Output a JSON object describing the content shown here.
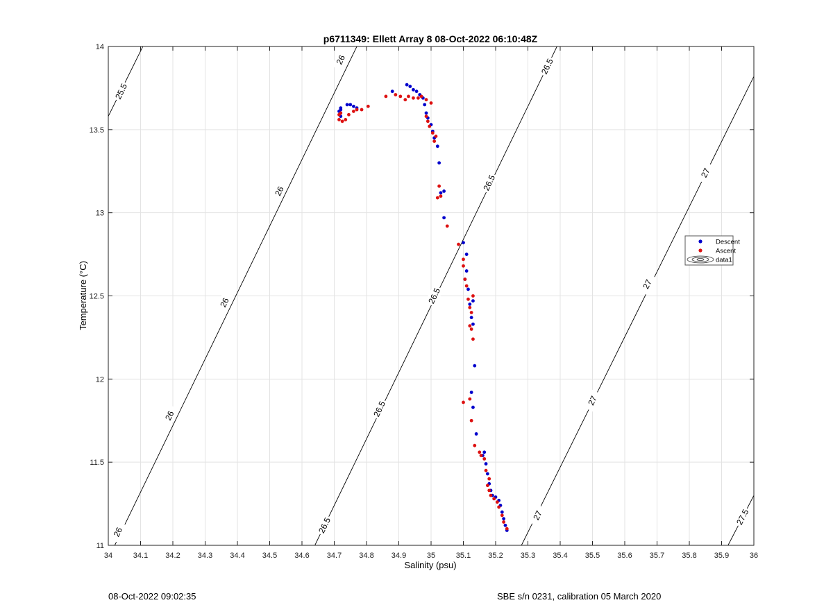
{
  "chart_data": {
    "type": "scatter",
    "title": "p6711349: Ellett Array 8 08-Oct-2022 06:10:48Z",
    "xlabel": "Salinity (psu)",
    "ylabel": "Temperature (°C)",
    "xlim": [
      34,
      36
    ],
    "ylim": [
      11,
      14
    ],
    "xticks": [
      34,
      34.1,
      34.2,
      34.3,
      34.4,
      34.5,
      34.6,
      34.7,
      34.8,
      34.9,
      35,
      35.1,
      35.2,
      35.3,
      35.4,
      35.5,
      35.6,
      35.7,
      35.8,
      35.9,
      36
    ],
    "yticks": [
      11,
      11.5,
      12,
      12.5,
      13,
      13.5,
      14
    ],
    "grid": true,
    "legend_position": "right",
    "legend": [
      "Descent",
      "Ascent",
      "data1"
    ],
    "series": [
      {
        "name": "Descent",
        "color": "#0000cc",
        "points": [
          [
            35.235,
            11.09
          ],
          [
            35.23,
            11.12
          ],
          [
            35.225,
            11.16
          ],
          [
            35.22,
            11.2
          ],
          [
            35.215,
            11.24
          ],
          [
            35.21,
            11.27
          ],
          [
            35.2,
            11.29
          ],
          [
            35.19,
            11.3
          ],
          [
            35.185,
            11.33
          ],
          [
            35.18,
            11.37
          ],
          [
            35.175,
            11.43
          ],
          [
            35.17,
            11.49
          ],
          [
            35.165,
            11.56
          ],
          [
            35.16,
            11.54
          ],
          [
            35.14,
            11.67
          ],
          [
            35.13,
            11.83
          ],
          [
            35.125,
            11.92
          ],
          [
            35.135,
            12.08
          ],
          [
            35.13,
            12.33
          ],
          [
            35.125,
            12.37
          ],
          [
            35.12,
            12.45
          ],
          [
            35.13,
            12.47
          ],
          [
            35.115,
            12.54
          ],
          [
            35.11,
            12.65
          ],
          [
            35.105,
            12.6
          ],
          [
            35.11,
            12.75
          ],
          [
            35.1,
            12.82
          ],
          [
            35.04,
            12.97
          ],
          [
            35.04,
            13.13
          ],
          [
            35.03,
            13.12
          ],
          [
            35.025,
            13.3
          ],
          [
            35.02,
            13.4
          ],
          [
            35.01,
            13.45
          ],
          [
            35.005,
            13.49
          ],
          [
            35.0,
            13.53
          ],
          [
            34.99,
            13.57
          ],
          [
            34.985,
            13.6
          ],
          [
            34.98,
            13.65
          ],
          [
            34.975,
            13.69
          ],
          [
            34.965,
            13.71
          ],
          [
            34.955,
            13.73
          ],
          [
            34.945,
            13.74
          ],
          [
            34.935,
            13.76
          ],
          [
            34.925,
            13.77
          ],
          [
            34.88,
            13.73
          ],
          [
            34.77,
            13.63
          ],
          [
            34.76,
            13.64
          ],
          [
            34.75,
            13.65
          ],
          [
            34.74,
            13.65
          ],
          [
            34.72,
            13.63
          ],
          [
            34.72,
            13.62
          ],
          [
            34.715,
            13.61
          ],
          [
            34.72,
            13.58
          ]
        ]
      },
      {
        "name": "Ascent",
        "color": "#dd1111",
        "points": [
          [
            35.235,
            11.1
          ],
          [
            35.225,
            11.14
          ],
          [
            35.22,
            11.18
          ],
          [
            35.21,
            11.23
          ],
          [
            35.205,
            11.26
          ],
          [
            35.195,
            11.28
          ],
          [
            35.185,
            11.3
          ],
          [
            35.18,
            11.33
          ],
          [
            35.175,
            11.36
          ],
          [
            35.18,
            11.4
          ],
          [
            35.17,
            11.45
          ],
          [
            35.165,
            11.52
          ],
          [
            35.155,
            11.54
          ],
          [
            35.15,
            11.56
          ],
          [
            35.135,
            11.6
          ],
          [
            35.125,
            11.75
          ],
          [
            35.12,
            11.88
          ],
          [
            35.1,
            11.86
          ],
          [
            35.13,
            12.24
          ],
          [
            35.125,
            12.3
          ],
          [
            35.12,
            12.32
          ],
          [
            35.125,
            12.4
          ],
          [
            35.12,
            12.43
          ],
          [
            35.13,
            12.5
          ],
          [
            35.115,
            12.48
          ],
          [
            35.11,
            12.56
          ],
          [
            35.105,
            12.6
          ],
          [
            35.1,
            12.68
          ],
          [
            35.1,
            12.72
          ],
          [
            35.085,
            12.81
          ],
          [
            35.05,
            12.92
          ],
          [
            35.03,
            13.1
          ],
          [
            35.02,
            13.09
          ],
          [
            35.025,
            13.16
          ],
          [
            35.015,
            13.46
          ],
          [
            35.01,
            13.43
          ],
          [
            35.005,
            13.48
          ],
          [
            34.995,
            13.52
          ],
          [
            34.99,
            13.55
          ],
          [
            34.985,
            13.58
          ],
          [
            35.0,
            13.66
          ],
          [
            34.985,
            13.68
          ],
          [
            34.97,
            13.7
          ],
          [
            34.96,
            13.69
          ],
          [
            34.945,
            13.69
          ],
          [
            34.93,
            13.7
          ],
          [
            34.92,
            13.68
          ],
          [
            34.905,
            13.7
          ],
          [
            34.89,
            13.71
          ],
          [
            34.86,
            13.7
          ],
          [
            34.805,
            13.64
          ],
          [
            34.785,
            13.62
          ],
          [
            34.77,
            13.62
          ],
          [
            34.76,
            13.61
          ],
          [
            34.745,
            13.59
          ],
          [
            34.735,
            13.56
          ],
          [
            34.725,
            13.55
          ],
          [
            34.715,
            13.56
          ],
          [
            34.715,
            13.59
          ],
          [
            34.72,
            13.6
          ]
        ]
      }
    ],
    "sigma_contours": {
      "lines": [
        {
          "label": "25.5",
          "points": [
            [
              34.0,
              13.58
            ],
            [
              34.107,
              14.0
            ]
          ],
          "labels_at": [
            [
              34.04,
              13.73
            ]
          ]
        },
        {
          "label": "26",
          "points": [
            [
              34.0,
              10.92
            ],
            [
              34.77,
              14.0
            ]
          ],
          "labels_at": [
            [
              34.03,
              11.08
            ],
            [
              34.19,
              11.78
            ],
            [
              34.36,
              12.46
            ],
            [
              34.53,
              13.13
            ],
            [
              34.72,
              13.92
            ]
          ]
        },
        {
          "label": "26.5",
          "points": [
            [
              34.64,
              11.0
            ],
            [
              35.39,
              14.0
            ]
          ],
          "labels_at": [
            [
              34.67,
              11.12
            ],
            [
              34.84,
              11.82
            ],
            [
              35.01,
              12.5
            ],
            [
              35.18,
              13.18
            ],
            [
              35.36,
              13.88
            ]
          ]
        },
        {
          "label": "27",
          "points": [
            [
              35.28,
              11.0
            ],
            [
              36.0,
              13.82
            ]
          ],
          "labels_at": [
            [
              35.33,
              11.18
            ],
            [
              35.5,
              11.87
            ],
            [
              35.67,
              12.57
            ],
            [
              35.85,
              13.24
            ]
          ]
        },
        {
          "label": "27.5",
          "points": [
            [
              35.92,
              11.0
            ],
            [
              36.0,
              11.3
            ]
          ],
          "labels_at": [
            [
              35.965,
              11.17
            ]
          ]
        }
      ]
    }
  },
  "footer": {
    "left": "08-Oct-2022 09:02:35",
    "right": "SBE s/n 0231, calibration 05 March 2020"
  }
}
